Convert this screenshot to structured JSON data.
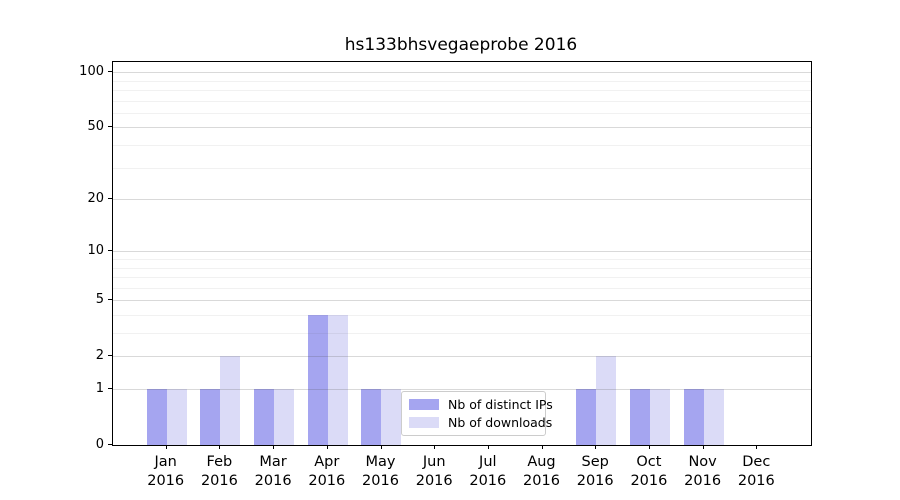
{
  "title": "hs133bhsvegaeprobe 2016",
  "colors": {
    "distinct_ips_bar": "#a5a5f0",
    "downloads_bar": "#dbdbf7",
    "axis": "#000000",
    "legend_border": "#cccccc",
    "background": "#ffffff"
  },
  "chart_data": {
    "type": "bar",
    "scale": "log1p-like (0,1,2,5,10,20,50,100 ticks)",
    "title": "hs133bhsvegaeprobe 2016",
    "xlabel": "",
    "ylabel": "",
    "ylim": [
      0,
      113
    ],
    "grid": true,
    "legend_position": "lower-center-inside",
    "categories": [
      {
        "month": "Jan",
        "year": "2016"
      },
      {
        "month": "Feb",
        "year": "2016"
      },
      {
        "month": "Mar",
        "year": "2016"
      },
      {
        "month": "Apr",
        "year": "2016"
      },
      {
        "month": "May",
        "year": "2016"
      },
      {
        "month": "Jun",
        "year": "2016"
      },
      {
        "month": "Jul",
        "year": "2016"
      },
      {
        "month": "Aug",
        "year": "2016"
      },
      {
        "month": "Sep",
        "year": "2016"
      },
      {
        "month": "Oct",
        "year": "2016"
      },
      {
        "month": "Nov",
        "year": "2016"
      },
      {
        "month": "Dec",
        "year": "2016"
      }
    ],
    "series": [
      {
        "name": "Nb of distinct IPs",
        "color": "#a5a5f0",
        "values": [
          1,
          1,
          1,
          4,
          1,
          0,
          0,
          0,
          1,
          1,
          1,
          0
        ]
      },
      {
        "name": "Nb of downloads",
        "color": "#dbdbf7",
        "values": [
          1,
          2,
          1,
          4,
          1,
          0,
          0,
          0,
          2,
          1,
          1,
          0
        ]
      }
    ],
    "y_major_ticks": [
      0,
      1,
      2,
      5,
      10,
      20,
      50,
      100
    ],
    "y_minor_gridlines": [
      3,
      4,
      6,
      7,
      8,
      9,
      30,
      40,
      60,
      70,
      80,
      90
    ]
  }
}
